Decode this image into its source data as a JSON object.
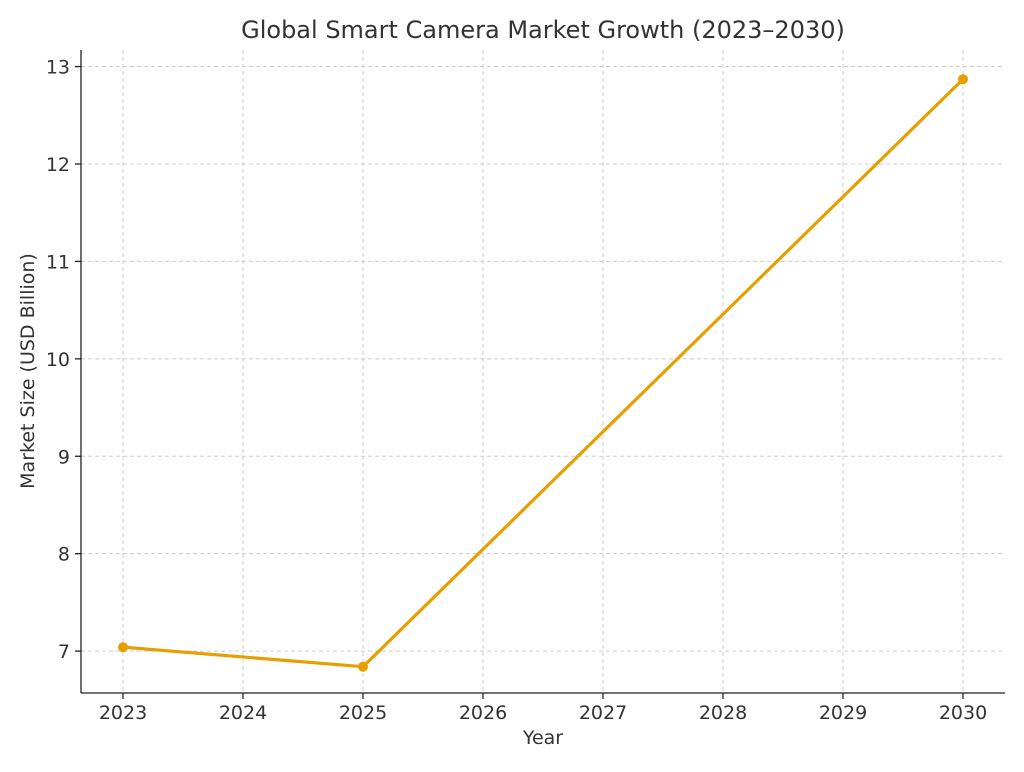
{
  "chart_data": {
    "type": "line",
    "title": "Global Smart Camera Market Growth (2023–2030)",
    "xlabel": "Year",
    "ylabel": "Market Size (USD Billion)",
    "x": [
      2023,
      2025,
      2030
    ],
    "series": [
      {
        "values": [
          7.04,
          6.84,
          12.87
        ],
        "color": "#e69f00"
      }
    ],
    "xticks": [
      "2023",
      "2024",
      "2025",
      "2026",
      "2027",
      "2028",
      "2029",
      "2030"
    ],
    "yticks": [
      "7",
      "8",
      "9",
      "10",
      "11",
      "12",
      "13"
    ],
    "xlim": [
      2022.65,
      2030.35
    ],
    "ylim": [
      6.57,
      13.17
    ],
    "grid": true,
    "marker": "circle"
  }
}
